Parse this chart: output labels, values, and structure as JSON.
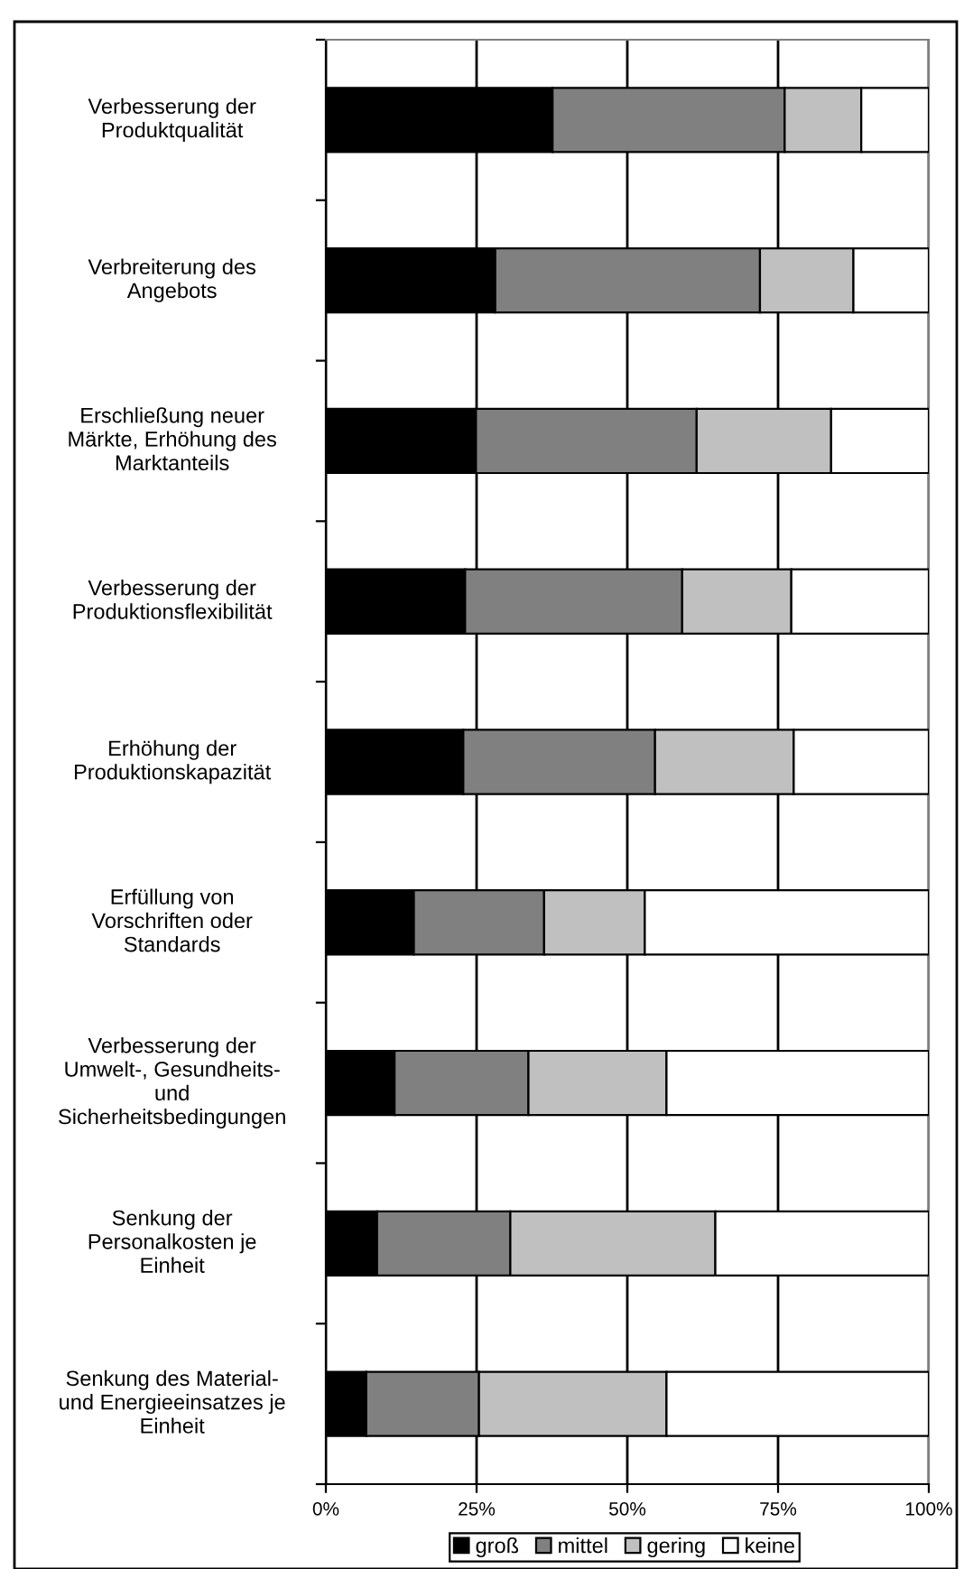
{
  "chart_data": {
    "type": "bar",
    "orientation": "horizontal",
    "stacked": true,
    "categories": [
      "Verbesserung der\nProduktqualität",
      "Verbreiterung des\nAngebots",
      "Erschließung neuer\nMärkte, Erhöhung des\nMarktanteils",
      "Verbesserung der\nProduktionsflexibilität",
      "Erhöhung der\nProduktionskapazität",
      "Erfüllung von\nVorschriften oder\nStandards",
      "Verbesserung der\nUmwelt-, Gesundheits-\nund\nSicherheitsbedingungen",
      "Senkung der\nPersonalkosten je\nEinheit",
      "Senkung des Material-\nund Energieeinsatzes je\nEinheit"
    ],
    "series": [
      {
        "name": "groß",
        "color": "#000000",
        "values": [
          37.6,
          28.1,
          24.9,
          23.1,
          22.8,
          14.6,
          11.4,
          8.5,
          6.7
        ]
      },
      {
        "name": "mittel",
        "color": "#808080",
        "values": [
          38.5,
          43.9,
          36.6,
          36.0,
          31.8,
          21.6,
          22.2,
          22.1,
          18.7
        ]
      },
      {
        "name": "gering",
        "color": "#c0c0c0",
        "values": [
          12.7,
          15.5,
          22.3,
          18.1,
          23.0,
          16.7,
          22.9,
          34.0,
          31.1
        ]
      },
      {
        "name": "keine",
        "color": "#ffffff",
        "values": [
          11.2,
          12.5,
          16.2,
          22.8,
          22.4,
          47.1,
          43.5,
          35.4,
          43.5
        ]
      }
    ],
    "xlim": [
      0,
      100
    ],
    "xticks": [
      {
        "value": 0,
        "label": "0%"
      },
      {
        "value": 25,
        "label": "25%"
      },
      {
        "value": 50,
        "label": "50%"
      },
      {
        "value": 75,
        "label": "75%"
      },
      {
        "value": 100,
        "label": "100%"
      }
    ],
    "grid": "x",
    "legend": "bottom"
  }
}
